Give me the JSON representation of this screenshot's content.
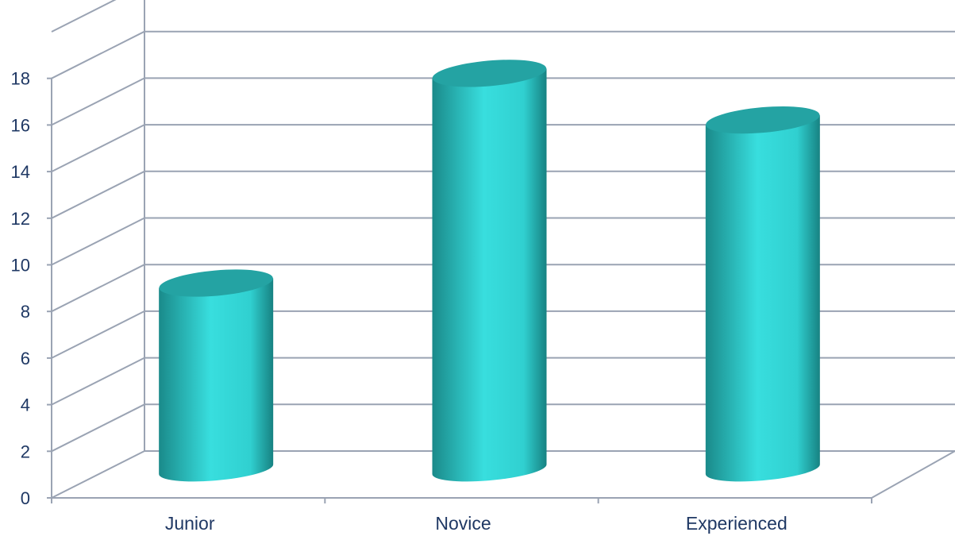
{
  "chart_data": {
    "type": "bar",
    "style": "3d-cylinder",
    "categories": [
      "Junior",
      "Novice",
      "Experienced"
    ],
    "values": [
      8.5,
      17.5,
      15.5
    ],
    "title": "",
    "xlabel": "",
    "ylabel": "",
    "ylim": [
      0,
      18
    ],
    "yticks": [
      "0",
      "2",
      "4",
      "6",
      "8",
      "10",
      "12",
      "14",
      "16",
      "18"
    ],
    "grid": true,
    "legend": "none",
    "colors": {
      "bar_light": "#38dede",
      "bar_mid": "#27b3b3",
      "bar_dark": "#1a8585",
      "bar_top": "#24a3a3",
      "gridline": "#9aa3b3",
      "label": "#1f3864"
    }
  }
}
